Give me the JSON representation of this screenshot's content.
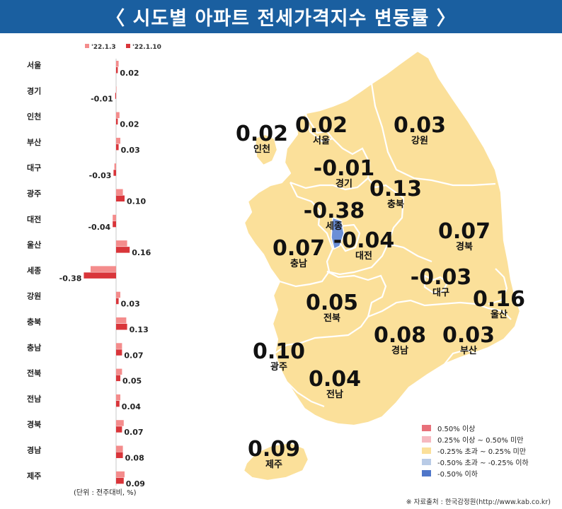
{
  "title": "〈 시도별 아파트 전세가격지수 변동률 〉",
  "chart_data": {
    "type": "bar",
    "categories": [
      "서울",
      "경기",
      "인천",
      "부산",
      "대구",
      "광주",
      "대전",
      "울산",
      "세종",
      "강원",
      "충북",
      "충남",
      "전북",
      "전남",
      "경북",
      "경남",
      "제주"
    ],
    "series": [
      {
        "name": "'22.1.3",
        "color": "#f48c8c",
        "values": [
          0.03,
          0.0,
          0.04,
          0.05,
          -0.02,
          0.08,
          -0.04,
          0.13,
          -0.3,
          0.05,
          0.12,
          0.07,
          0.07,
          0.05,
          0.09,
          0.08,
          0.1
        ]
      },
      {
        "name": "'22.1.10",
        "color": "#d9353a",
        "values": [
          0.02,
          -0.01,
          0.02,
          0.03,
          -0.03,
          0.1,
          -0.04,
          0.16,
          -0.38,
          0.03,
          0.13,
          0.07,
          0.05,
          0.04,
          0.07,
          0.08,
          0.09
        ]
      }
    ],
    "value_labels": [
      "0.02",
      "-0.01",
      "0.02",
      "0.03",
      "-0.03",
      "0.10",
      "-0.04",
      "0.16",
      "-0.38",
      "0.03",
      "0.13",
      "0.07",
      "0.05",
      "0.04",
      "0.07",
      "0.08",
      "0.09"
    ],
    "unit_note": "(단위 : 전주대비, %)"
  },
  "map": {
    "regions": [
      {
        "name": "서울",
        "value": "0.02",
        "class": "b"
      },
      {
        "name": "인천",
        "value": "0.02",
        "class": "b"
      },
      {
        "name": "경기",
        "value": "-0.01",
        "class": "c"
      },
      {
        "name": "강원",
        "value": "0.03",
        "class": "b"
      },
      {
        "name": "충북",
        "value": "0.13",
        "class": "b"
      },
      {
        "name": "세종",
        "value": "-0.38",
        "class": "d"
      },
      {
        "name": "충남",
        "value": "0.07",
        "class": "b"
      },
      {
        "name": "대전",
        "value": "-0.04",
        "class": "c"
      },
      {
        "name": "경북",
        "value": "0.07",
        "class": "b"
      },
      {
        "name": "대구",
        "value": "-0.03",
        "class": "c"
      },
      {
        "name": "울산",
        "value": "0.16",
        "class": "b"
      },
      {
        "name": "전북",
        "value": "0.05",
        "class": "b"
      },
      {
        "name": "광주",
        "value": "0.10",
        "class": "b"
      },
      {
        "name": "경남",
        "value": "0.08",
        "class": "b"
      },
      {
        "name": "부산",
        "value": "0.03",
        "class": "b"
      },
      {
        "name": "전남",
        "value": "0.04",
        "class": "b"
      },
      {
        "name": "제주",
        "value": "0.09",
        "class": "b"
      }
    ],
    "fill_color": "#fbe09a",
    "highlight_color": "#6b8fd6"
  },
  "legend": [
    {
      "label": "0.50% 이상",
      "color": "#e8707a"
    },
    {
      "label": "0.25% 이상 ~ 0.50% 미만",
      "color": "#f6b9c0"
    },
    {
      "label": "-0.25% 초과 ~ 0.25% 미만",
      "color": "#fbe09a"
    },
    {
      "label": "-0.50% 초과 ~ -0.25% 이하",
      "color": "#b9cbe6"
    },
    {
      "label": "-0.50% 이하",
      "color": "#4f76c9"
    }
  ],
  "source": "※ 자료출처 : 한국감정원(http://www.kab.co.kr)"
}
